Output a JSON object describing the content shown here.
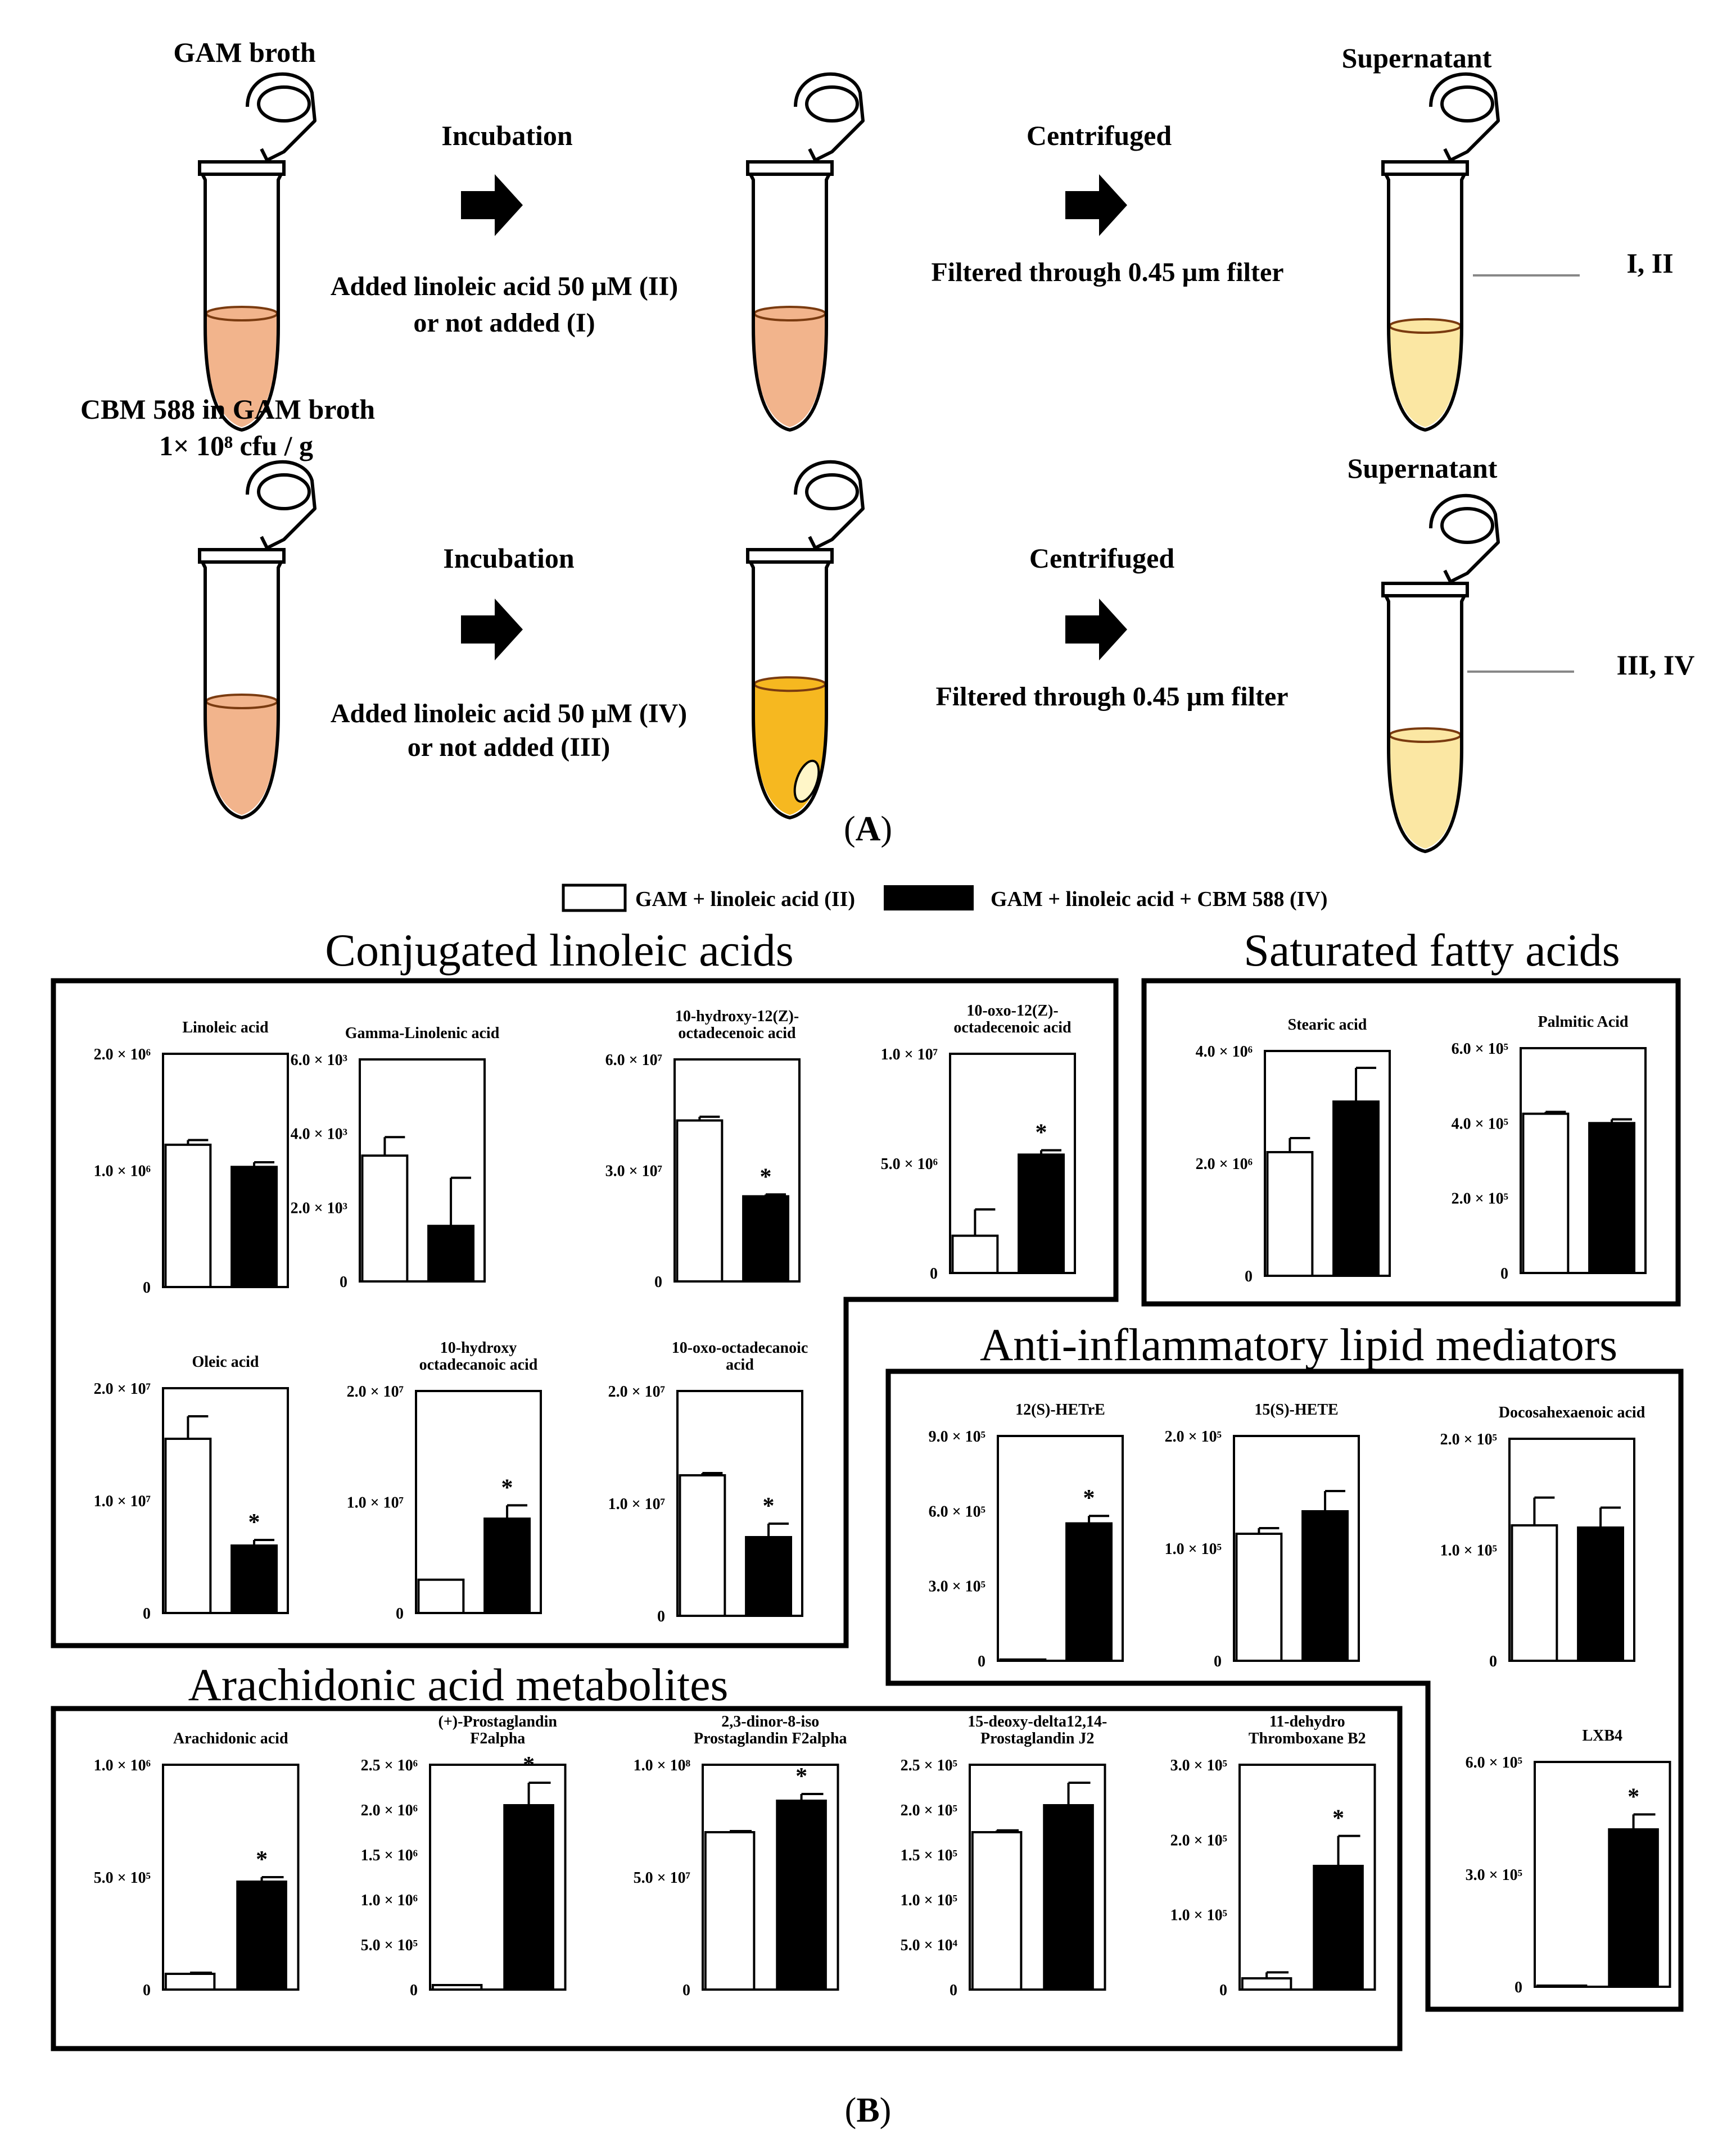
{
  "panel_a": {
    "row1": {
      "start_label": "GAM broth",
      "step1_title": "Incubation",
      "step1_line1": "Added linoleic acid 50 µM (II)",
      "step1_line2": "or not added (I)",
      "step2_title": "Centrifuged",
      "step2_line1": "Filtered through 0.45 µm filter",
      "end_label": "Supernatant",
      "end_samples": "I,  II"
    },
    "row2": {
      "start_label_line1": "CBM 588 in GAM broth",
      "start_label_line2": "1× 10⁸ cfu / g",
      "step1_title": "Incubation",
      "step1_line1": "Added linoleic acid 50 µM (IV)",
      "step1_line2": "or not added (III)",
      "step2_title": "Centrifuged",
      "step2_line1": "Filtered through 0.45 µm filter",
      "end_label": "Supernatant",
      "end_samples": "III,  IV"
    },
    "caption": "(A)"
  },
  "panel_b": {
    "legend": {
      "white_label": "GAM + linoleic acid (II)",
      "black_label": "GAM + linoleic acid + CBM 588 (IV)"
    },
    "groups": {
      "cla": "Conjugated linoleic acids",
      "sfa": "Saturated fatty acids",
      "anti": "Anti-inflammatory lipid mediators",
      "ara": "Arachidonic acid metabolites"
    },
    "caption": "(B)"
  },
  "colors": {
    "tube_pink": "#f2b48c",
    "tube_pink_dark": "#e8956a",
    "tube_orange": "#f6b820",
    "tube_pale": "#fbe7a3",
    "bar_black": "#000000",
    "bar_white": "#ffffff"
  },
  "chart_data": [
    {
      "type": "bar",
      "title": "Linoleic acid",
      "categories": [
        "II",
        "IV"
      ],
      "values": [
        1220000.0,
        1030000.0
      ],
      "errors": [
        40000.0,
        40000.0
      ],
      "significant": [
        false,
        false
      ],
      "ylim": [
        0,
        2000000.0
      ],
      "yticks": [
        "0",
        "1.0 × 10⁶",
        "2.0 × 10⁶"
      ]
    },
    {
      "type": "bar",
      "title": "Gamma-Linolenic acid",
      "categories": [
        "II",
        "IV"
      ],
      "values": [
        3400.0,
        1500.0
      ],
      "errors": [
        500.0,
        1300.0
      ],
      "significant": [
        false,
        false
      ],
      "ylim": [
        0,
        6000.0
      ],
      "yticks": [
        "0",
        "2.0 × 10³",
        "4.0 × 10³",
        "6.0 × 10³"
      ]
    },
    {
      "type": "bar",
      "title": "10-hydroxy-12(Z)- octadecenoic acid",
      "categories": [
        "II",
        "IV"
      ],
      "values": [
        43500000.0,
        23000000.0
      ],
      "errors": [
        1000000.0,
        500000.0
      ],
      "significant": [
        false,
        true
      ],
      "ylim": [
        0,
        60000000.0
      ],
      "yticks": [
        "0",
        "3.0 × 10⁷",
        "6.0 × 10⁷"
      ]
    },
    {
      "type": "bar",
      "title": "10-oxo-12(Z)- octadecenoic acid",
      "categories": [
        "II",
        "IV"
      ],
      "values": [
        1700000.0,
        5400000.0
      ],
      "errors": [
        1200000.0,
        200000.0
      ],
      "significant": [
        false,
        true
      ],
      "ylim": [
        0,
        10000000.0
      ],
      "yticks": [
        "0",
        "5.0 × 10⁶",
        "1.0 × 10⁷"
      ]
    },
    {
      "type": "bar",
      "title": "Oleic acid",
      "categories": [
        "II",
        "IV"
      ],
      "values": [
        15500000.0,
        6000000.0
      ],
      "errors": [
        2000000.0,
        500000.0
      ],
      "significant": [
        false,
        true
      ],
      "ylim": [
        0,
        20000000.0
      ],
      "yticks": [
        "0",
        "1.0 × 10⁷",
        "2.0 × 10⁷"
      ]
    },
    {
      "type": "bar",
      "title": "10-hydroxy octadecanoic acid",
      "categories": [
        "II",
        "IV"
      ],
      "values": [
        3000000.0,
        8500000.0
      ],
      "errors": [
        0,
        1200000.0
      ],
      "significant": [
        false,
        true
      ],
      "ylim": [
        0,
        20000000.0
      ],
      "yticks": [
        "0",
        "1.0 × 10⁷",
        "2.0 × 10⁷"
      ]
    },
    {
      "type": "bar",
      "title": "10-oxo-octadecanoic acid",
      "categories": [
        "II",
        "IV"
      ],
      "values": [
        12500000.0,
        7000000.0
      ],
      "errors": [
        200000.0,
        1200000.0
      ],
      "significant": [
        false,
        true
      ],
      "ylim": [
        0,
        20000000.0
      ],
      "yticks": [
        "0",
        "1.0 × 10⁷",
        "2.0 × 10⁷"
      ]
    },
    {
      "type": "bar",
      "title": "Stearic acid",
      "categories": [
        "II",
        "IV"
      ],
      "values": [
        2200000.0,
        3100000.0
      ],
      "errors": [
        250000.0,
        600000.0
      ],
      "significant": [
        false,
        false
      ],
      "ylim": [
        0,
        4000000.0
      ],
      "yticks": [
        "0",
        "2.0 × 10⁶",
        "4.0 × 10⁶"
      ]
    },
    {
      "type": "bar",
      "title": "Palmitic Acid",
      "categories": [
        "II",
        "IV"
      ],
      "values": [
        425000.0,
        400000.0
      ],
      "errors": [
        5000.0,
        10000.0
      ],
      "significant": [
        false,
        false
      ],
      "ylim": [
        0,
        600000.0
      ],
      "yticks": [
        "0",
        "2.0 × 10⁵",
        "4.0 × 10⁵",
        "6.0 × 10⁵"
      ]
    },
    {
      "type": "bar",
      "title": "12(S)-HETrE",
      "categories": [
        "II",
        "IV"
      ],
      "values": [
        5000.0,
        550000.0
      ],
      "errors": [
        0,
        30000.0
      ],
      "significant": [
        false,
        true
      ],
      "ylim": [
        0,
        900000.0
      ],
      "yticks": [
        "0",
        "3.0 × 10⁵",
        "6.0 × 10⁵",
        "9.0 × 10⁵"
      ]
    },
    {
      "type": "bar",
      "title": "15(S)-HETE",
      "categories": [
        "II",
        "IV"
      ],
      "values": [
        113000.0,
        133000.0
      ],
      "errors": [
        5000.0,
        18000.0
      ],
      "significant": [
        false,
        false
      ],
      "ylim": [
        0,
        200000.0
      ],
      "yticks": [
        "0",
        "1.0 × 10⁵",
        "2.0 × 10⁵"
      ]
    },
    {
      "type": "bar",
      "title": "Docosahexaenoic acid",
      "categories": [
        "II",
        "IV"
      ],
      "values": [
        122000.0,
        120000.0
      ],
      "errors": [
        25000.0,
        18000.0
      ],
      "significant": [
        false,
        false
      ],
      "ylim": [
        0,
        200000.0
      ],
      "yticks": [
        "0",
        "1.0 × 10⁵",
        "2.0 × 10⁵"
      ]
    },
    {
      "type": "bar",
      "title": "LXB4",
      "categories": [
        "II",
        "IV"
      ],
      "values": [
        3000.0,
        420000.0
      ],
      "errors": [
        0,
        40000.0
      ],
      "significant": [
        false,
        true
      ],
      "ylim": [
        0,
        600000.0
      ],
      "yticks": [
        "0",
        "3.0 × 10⁵",
        "6.0 × 10⁵"
      ]
    },
    {
      "type": "bar",
      "title": "Arachidonic acid",
      "categories": [
        "II",
        "IV"
      ],
      "values": [
        70000.0,
        480000.0
      ],
      "errors": [
        5000.0,
        20000.0
      ],
      "significant": [
        false,
        true
      ],
      "ylim": [
        0,
        1000000.0
      ],
      "yticks": [
        "0",
        "5.0 × 10⁵",
        "1.0 × 10⁶"
      ]
    },
    {
      "type": "bar",
      "title": "(+)-Prostaglandin F2alpha",
      "categories": [
        "II",
        "IV"
      ],
      "values": [
        50000.0,
        2050000.0
      ],
      "errors": [
        0,
        250000.0
      ],
      "significant": [
        false,
        true
      ],
      "ylim": [
        0,
        2500000.0
      ],
      "yticks": [
        "0",
        "5.0 × 10⁵",
        "1.0 × 10⁶",
        "1.5 × 10⁶",
        "2.0 × 10⁶",
        "2.5 × 10⁶"
      ]
    },
    {
      "type": "bar",
      "title": "2,3-dinor-8-iso Prostaglandin F2alpha",
      "categories": [
        "II",
        "IV"
      ],
      "values": [
        70000000.0,
        84000000.0
      ],
      "errors": [
        500000.0,
        3000000.0
      ],
      "significant": [
        false,
        true
      ],
      "ylim": [
        0,
        100000000.0
      ],
      "yticks": [
        "0",
        "5.0 × 10⁷",
        "1.0 × 10⁸"
      ]
    },
    {
      "type": "bar",
      "title": "15-deoxy-delta12,14- Prostaglandin J2",
      "categories": [
        "II",
        "IV"
      ],
      "values": [
        175000.0,
        205000.0
      ],
      "errors": [
        2000.0,
        25000.0
      ],
      "significant": [
        false,
        false
      ],
      "ylim": [
        0,
        250000.0
      ],
      "yticks": [
        "0",
        "5.0 × 10⁴",
        "1.0 × 10⁵",
        "1.5 × 10⁵",
        "2.0 × 10⁵",
        "2.5 × 10⁵"
      ]
    },
    {
      "type": "bar",
      "title": "11-dehydro Thromboxane B2",
      "categories": [
        "II",
        "IV"
      ],
      "values": [
        15000.0,
        165000.0
      ],
      "errors": [
        8000.0,
        40000.0
      ],
      "significant": [
        false,
        true
      ],
      "ylim": [
        0,
        300000.0
      ],
      "yticks": [
        "0",
        "1.0 × 10⁵",
        "2.0 × 10⁵",
        "3.0 × 10⁵"
      ]
    }
  ]
}
